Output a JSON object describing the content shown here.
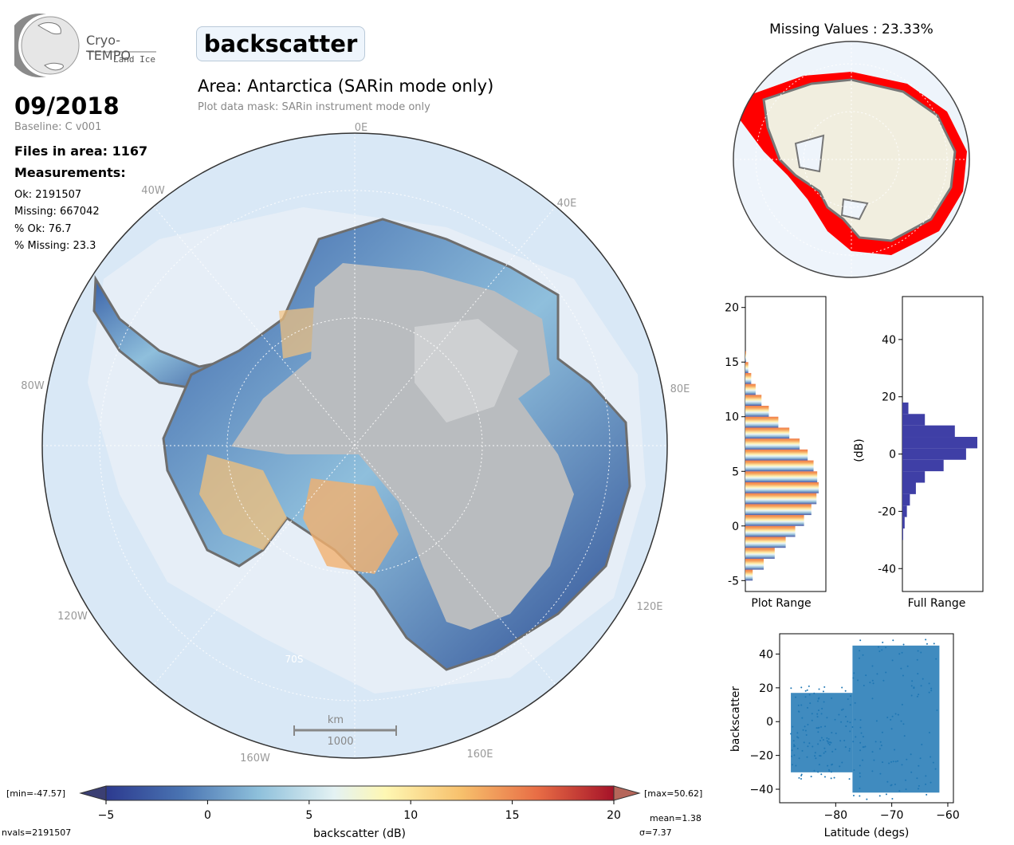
{
  "logo": {
    "name": "Cryo-TEMPO",
    "sub": "Land Ice"
  },
  "title": "backscatter",
  "area": "Area: Antarctica (SARin mode only)",
  "mask": "Plot data mask: SARin instrument mode only",
  "date": "09/2018",
  "baseline": "Baseline: C v001",
  "files": "Files in area: 1167",
  "measurements_label": "Measurements:",
  "stats": {
    "ok": "Ok: 2191507",
    "missing": "Missing: 667042",
    "pct_ok": "% Ok: 76.7",
    "pct_missing": "% Missing: 23.3"
  },
  "map_labels": {
    "lon_0e": "0E",
    "lon_40w": "40W",
    "lon_40e": "40E",
    "lon_80w": "80W",
    "lon_80e": "80E",
    "lon_120w": "120W",
    "lon_120e": "120E",
    "lon_160w": "160W",
    "lon_160e": "160E",
    "lat_70s": "70S"
  },
  "scale_bar": {
    "unit": "km",
    "value": "1000"
  },
  "missing_title": "Missing Values : 23.33%",
  "colorbar": {
    "min_label": "[min=-47.57]",
    "max_label": "[max=50.62]",
    "label": "backscatter (dB)",
    "ticks": [
      "-5",
      "0",
      "5",
      "10",
      "15",
      "20"
    ]
  },
  "footer": {
    "nvals": "nvals=2191507",
    "mean": "mean=1.38",
    "sigma": "σ=7.37"
  },
  "colors": {
    "accent_red": "#ff0000",
    "hist_full": "#3f3fa6",
    "scatter": "#1f77b4",
    "ocean": "#d6e7f5",
    "ice_gray": "#b9bcbf"
  },
  "chart_data": [
    {
      "type": "bar",
      "title": "Plot Range",
      "orientation": "horizontal",
      "ylim": [
        -6,
        21
      ],
      "y": [
        -5,
        -4,
        -3,
        -2,
        -1,
        0,
        1,
        2,
        3,
        4,
        5,
        6,
        7,
        8,
        9,
        10,
        11,
        12,
        13,
        14,
        15
      ],
      "values": [
        0.1,
        0.25,
        0.4,
        0.55,
        0.68,
        0.8,
        0.9,
        0.97,
        1.0,
        0.98,
        0.93,
        0.85,
        0.74,
        0.6,
        0.45,
        0.32,
        0.22,
        0.14,
        0.08,
        0.04,
        0.01
      ],
      "yticks": [
        "-5",
        "0",
        "5",
        "10",
        "15",
        "20"
      ],
      "xlabel": "Plot Range"
    },
    {
      "type": "bar",
      "title": "Full Range",
      "orientation": "horizontal",
      "ylim": [
        -48,
        55
      ],
      "ylabel": "(dB)",
      "y": [
        -30,
        -26,
        -22,
        -18,
        -14,
        -10,
        -6,
        -2,
        2,
        6,
        10,
        14
      ],
      "values": [
        0.01,
        0.03,
        0.06,
        0.1,
        0.18,
        0.3,
        0.55,
        0.85,
        1.0,
        0.7,
        0.3,
        0.08
      ],
      "yticks": [
        "40",
        "20",
        "0",
        "-20",
        "-40"
      ],
      "xlabel": "Full Range"
    },
    {
      "type": "scatter",
      "xlabel": "Latitude (degs)",
      "ylabel": "backscatter",
      "xlim": [
        -90,
        -59
      ],
      "ylim": [
        -48,
        52
      ],
      "xticks": [
        "-80",
        "-70",
        "-60"
      ],
      "yticks": [
        "40",
        "20",
        "0",
        "-20",
        "-40"
      ],
      "bands": [
        {
          "x0": -88,
          "x1": -77,
          "lo": -30,
          "hi": 17
        },
        {
          "x0": -77,
          "x1": -61.5,
          "lo": -42,
          "hi": 45
        }
      ]
    }
  ]
}
